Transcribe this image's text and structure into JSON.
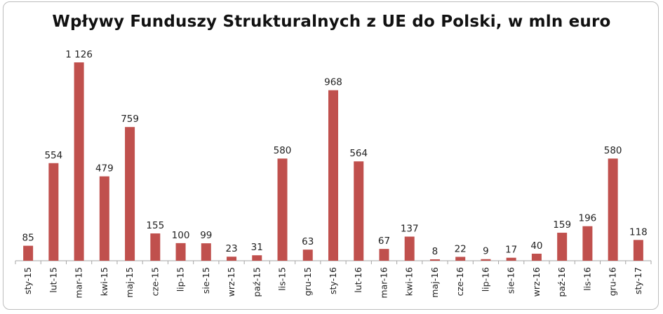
{
  "chart_data": {
    "type": "bar",
    "title": "Wpływy Funduszy Strukturalnych z UE do Polski, w mln euro",
    "xlabel": "",
    "ylabel": "",
    "ylim": [
      0,
      1126
    ],
    "grid": false,
    "legend": "none",
    "bar_color": "#c0504d",
    "categories": [
      "sty-15",
      "lut-15",
      "mar-15",
      "kwi-15",
      "maj-15",
      "cze-15",
      "lip-15",
      "sie-15",
      "wrz-15",
      "paź-15",
      "lis-15",
      "gru-15",
      "sty-16",
      "lut-16",
      "mar-16",
      "kwi-16",
      "maj-16",
      "cze-16",
      "lip-16",
      "sie-16",
      "wrz-16",
      "paź-16",
      "lis-16",
      "gru-16",
      "sty-17"
    ],
    "values": [
      85,
      554,
      1126,
      479,
      759,
      155,
      100,
      99,
      23,
      31,
      580,
      63,
      968,
      564,
      67,
      137,
      8,
      22,
      9,
      17,
      40,
      159,
      196,
      580,
      118
    ],
    "value_labels": [
      "85",
      "554",
      "1 126",
      "479",
      "759",
      "155",
      "100",
      "99",
      "23",
      "31",
      "580",
      "63",
      "968",
      "564",
      "67",
      "137",
      "8",
      "22",
      "9",
      "17",
      "40",
      "159",
      "196",
      "580",
      "118"
    ]
  }
}
